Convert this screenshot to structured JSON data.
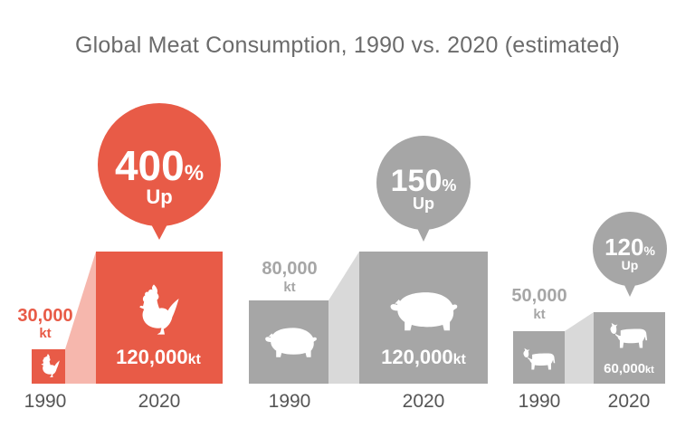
{
  "title": "Global Meat Consumption, 1990 vs. 2020 (estimated)",
  "colors": {
    "chicken": "#e85b47",
    "chicken_light": "#f6b7ad",
    "gray": "#a6a6a6",
    "gray_light": "#d9d9d9"
  },
  "chart_data": [
    {
      "type": "bar",
      "categories": [
        "1990",
        "2020"
      ],
      "values": [
        30000,
        120000
      ],
      "unit": "kt",
      "icon": "rooster-icon",
      "labels": {
        "v1990_number": "30,000",
        "v1990_unit": "kt",
        "v2020_number": "120,000",
        "v2020_unit": "kt"
      },
      "bubble": {
        "number": "400",
        "percent": "%",
        "word": "Up"
      }
    },
    {
      "type": "bar",
      "categories": [
        "1990",
        "2020"
      ],
      "values": [
        80000,
        120000
      ],
      "unit": "kt",
      "icon": "pig-icon",
      "labels": {
        "v1990_number": "80,000",
        "v1990_unit": "kt",
        "v2020_number": "120,000",
        "v2020_unit": "kt"
      },
      "bubble": {
        "number": "150",
        "percent": "%",
        "word": "Up"
      }
    },
    {
      "type": "bar",
      "categories": [
        "1990",
        "2020"
      ],
      "values": [
        50000,
        60000
      ],
      "unit": "kt",
      "icon": "cow-icon",
      "labels": {
        "v1990_number": "50,000",
        "v1990_unit": "kt",
        "v2020_number": "60,000",
        "v2020_unit": "kt"
      },
      "bubble": {
        "number": "120",
        "percent": "%",
        "word": "Up"
      }
    }
  ]
}
